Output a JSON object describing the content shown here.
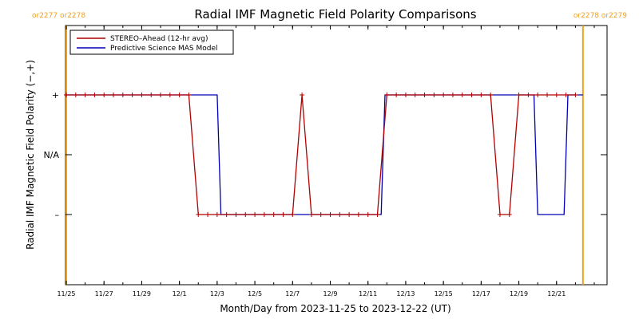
{
  "chart_data": {
    "type": "line",
    "title": "Radial IMF Magnetic Field Polarity Comparisons",
    "xlabel": "Month/Day from 2023-11-25 to 2023-12-22 (UT)",
    "ylabel": "Radial IMF Magnetic Field Polarity (−,+)",
    "xlim": [
      0,
      28
    ],
    "ylim": [
      -3,
      3
    ],
    "xticks": [
      {
        "x": 0,
        "label": "11/25"
      },
      {
        "x": 2,
        "label": "11/27"
      },
      {
        "x": 4,
        "label": "11/29"
      },
      {
        "x": 6,
        "label": "12/1"
      },
      {
        "x": 8,
        "label": "12/3"
      },
      {
        "x": 10,
        "label": "12/5"
      },
      {
        "x": 12,
        "label": "12/7"
      },
      {
        "x": 14,
        "label": "12/9"
      },
      {
        "x": 16,
        "label": "12/11"
      },
      {
        "x": 18,
        "label": "12/13"
      },
      {
        "x": 20,
        "label": "12/15"
      },
      {
        "x": 22,
        "label": "12/17"
      },
      {
        "x": 24,
        "label": "12/19"
      },
      {
        "x": 26,
        "label": "12/21"
      }
    ],
    "yticks": [
      {
        "y": 1,
        "label": "+"
      },
      {
        "y": 0,
        "label": "N/A"
      },
      {
        "y": -1,
        "label": "–"
      }
    ],
    "carrington_markers": [
      {
        "x": 0,
        "label": "or2277 or2278",
        "align": "left"
      },
      {
        "x": 27.4,
        "label": "or2278 or2279",
        "align": "right"
      }
    ],
    "legend_position": "top-left",
    "series": [
      {
        "name": "STEREO–Ahead (12-hr avg)",
        "color": "#b00000",
        "markers": true,
        "points": [
          [
            0,
            1
          ],
          [
            0.5,
            1
          ],
          [
            1,
            1
          ],
          [
            1.5,
            1
          ],
          [
            2,
            1
          ],
          [
            2.5,
            1
          ],
          [
            3,
            1
          ],
          [
            3.5,
            1
          ],
          [
            4,
            1
          ],
          [
            4.5,
            1
          ],
          [
            5,
            1
          ],
          [
            5.5,
            1
          ],
          [
            6,
            1
          ],
          [
            6.5,
            1
          ],
          [
            7,
            -1
          ],
          [
            7.5,
            -1
          ],
          [
            8,
            -1
          ],
          [
            8.5,
            -1
          ],
          [
            9,
            -1
          ],
          [
            9.5,
            -1
          ],
          [
            10,
            -1
          ],
          [
            10.5,
            -1
          ],
          [
            11,
            -1
          ],
          [
            11.5,
            -1
          ],
          [
            12,
            -1
          ],
          [
            12.5,
            1
          ],
          [
            13,
            -1
          ],
          [
            13.5,
            -1
          ],
          [
            14,
            -1
          ],
          [
            14.5,
            -1
          ],
          [
            15,
            -1
          ],
          [
            15.5,
            -1
          ],
          [
            16,
            -1
          ],
          [
            16.5,
            -1
          ],
          [
            17,
            1
          ],
          [
            17.5,
            1
          ],
          [
            18,
            1
          ],
          [
            18.5,
            1
          ],
          [
            19,
            1
          ],
          [
            19.5,
            1
          ],
          [
            20,
            1
          ],
          [
            20.5,
            1
          ],
          [
            21,
            1
          ],
          [
            21.5,
            1
          ],
          [
            22,
            1
          ],
          [
            22.5,
            1
          ],
          [
            23,
            -1
          ],
          [
            23.5,
            -1
          ],
          [
            24,
            1
          ],
          [
            24.5,
            1
          ],
          [
            25,
            1
          ],
          [
            25.5,
            1
          ],
          [
            26,
            1
          ],
          [
            26.5,
            1
          ],
          [
            27,
            1
          ]
        ]
      },
      {
        "name": "Predictive Science MAS Model",
        "color": "#0000b4",
        "markers": false,
        "points": [
          [
            0,
            1
          ],
          [
            8,
            1
          ],
          [
            8.2,
            -1
          ],
          [
            16.7,
            -1
          ],
          [
            16.9,
            1
          ],
          [
            24.8,
            1
          ],
          [
            25,
            -1
          ],
          [
            26.4,
            -1
          ],
          [
            26.6,
            1
          ],
          [
            27.4,
            1
          ]
        ]
      }
    ]
  }
}
